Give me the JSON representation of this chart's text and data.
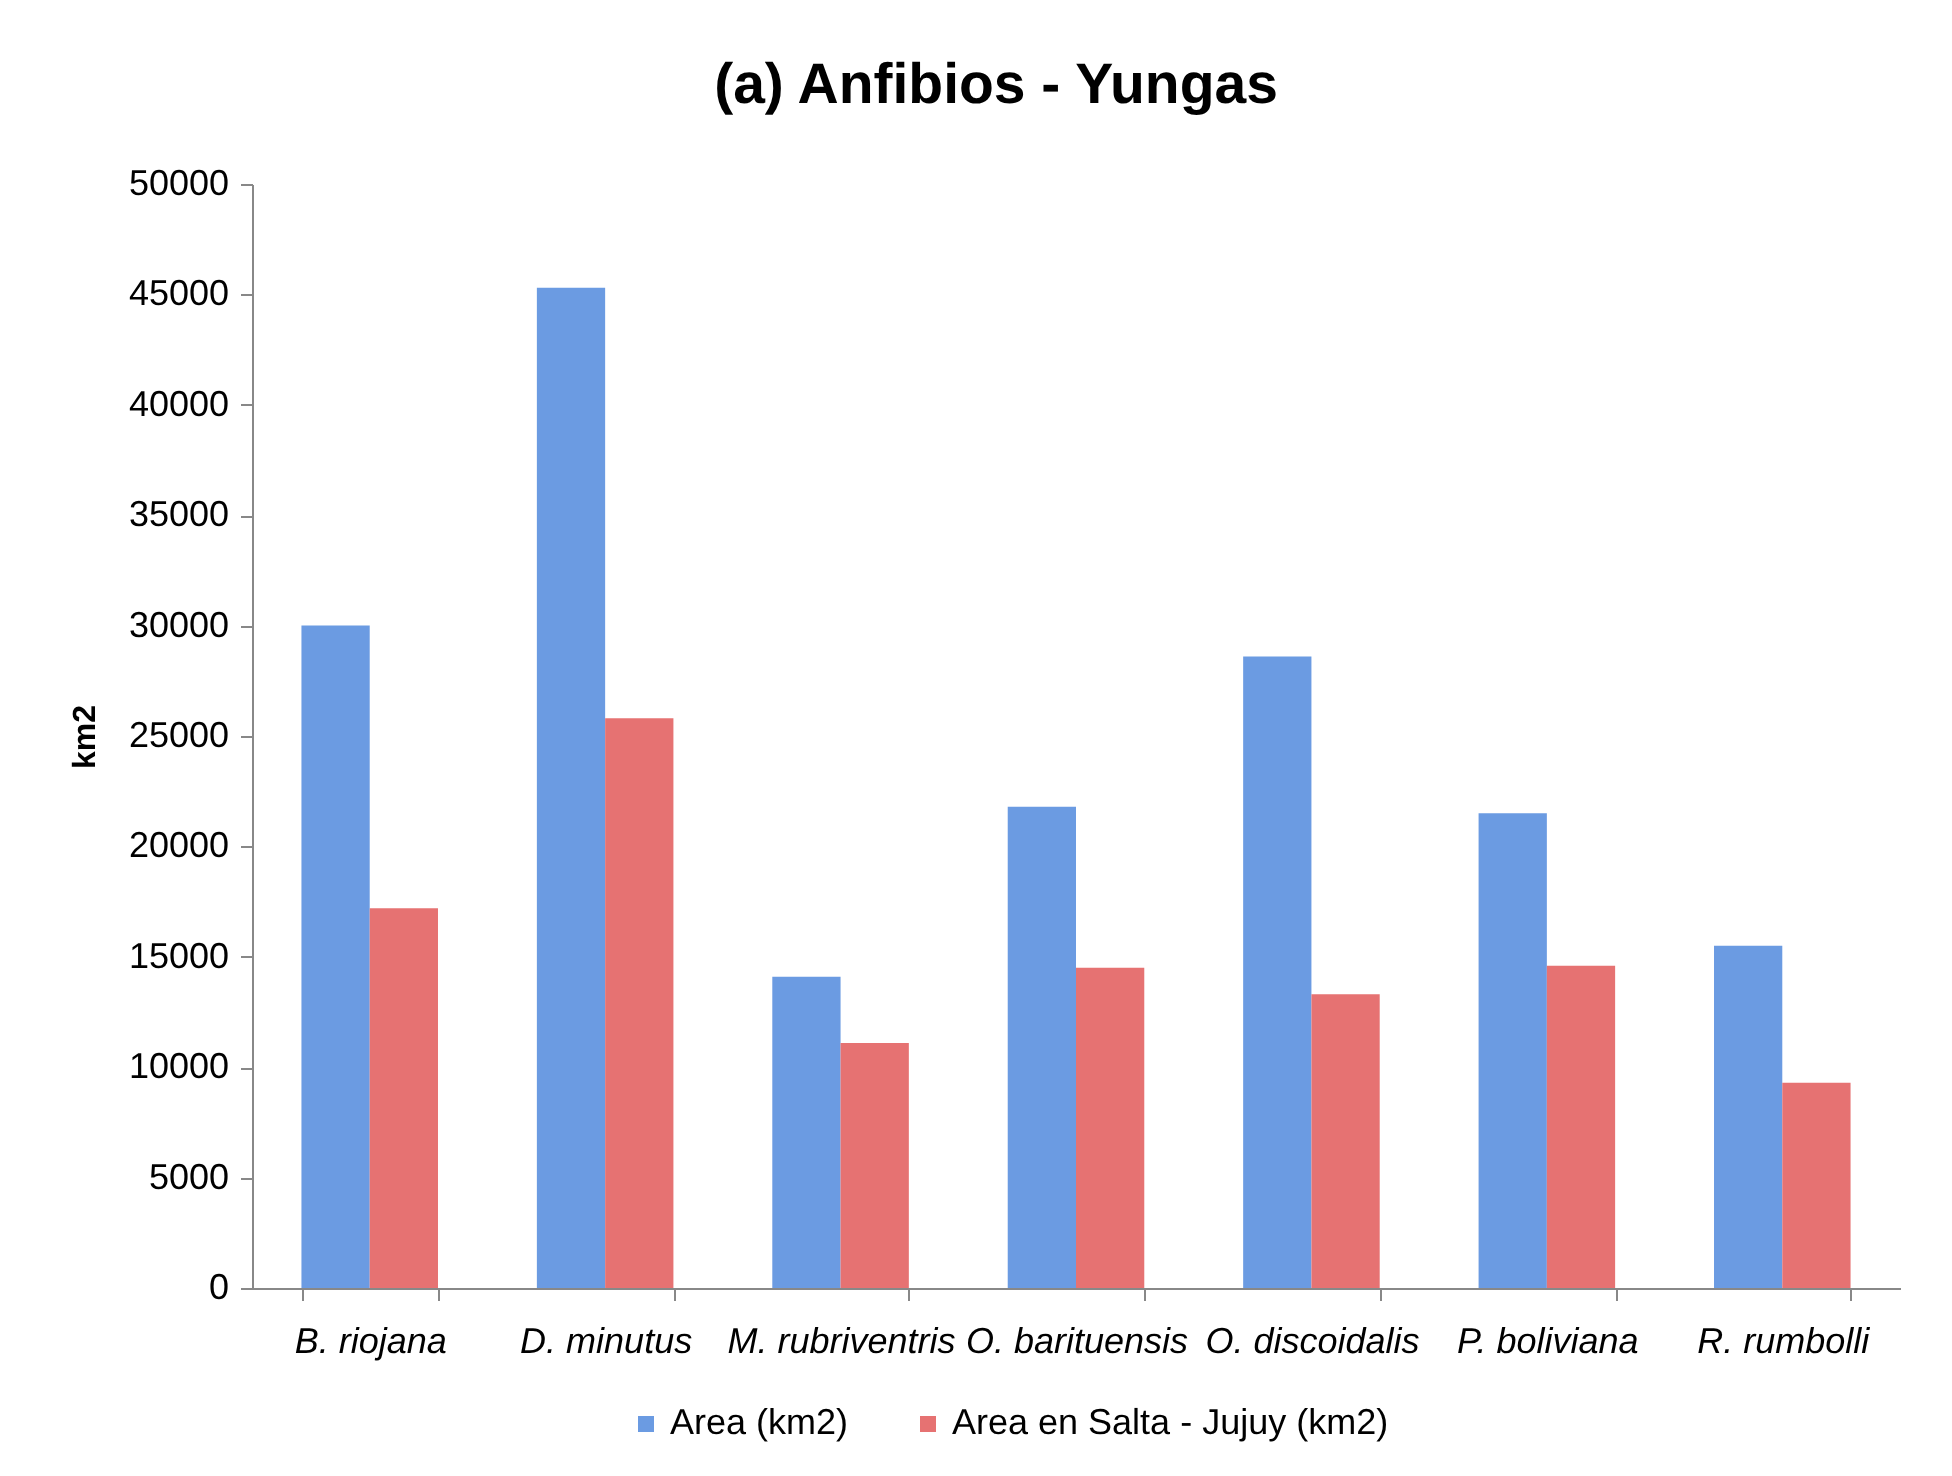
{
  "chart_data": {
    "type": "bar",
    "title": "(a) Anfibios - Yungas",
    "ylabel": "km2",
    "categories": [
      "B. riojana",
      "D. minutus",
      "M. rubriventris",
      "O. barituensis",
      "O. discoidalis",
      "P. boliviana",
      "R. rumbolli"
    ],
    "series": [
      {
        "name": "Area (km2)",
        "color": "#6b9be2",
        "values": [
          30000,
          45300,
          14100,
          21800,
          28600,
          21500,
          15500
        ]
      },
      {
        "name": "Area en Salta - Jujuy (km2)",
        "color": "#e67272",
        "values": [
          17200,
          25800,
          11100,
          14500,
          13300,
          14600,
          9300
        ]
      }
    ],
    "ylim": [
      0,
      50000
    ],
    "yticks": [
      0,
      5000,
      10000,
      15000,
      20000,
      25000,
      30000,
      35000,
      40000,
      45000,
      50000
    ],
    "legend": "bottom"
  }
}
